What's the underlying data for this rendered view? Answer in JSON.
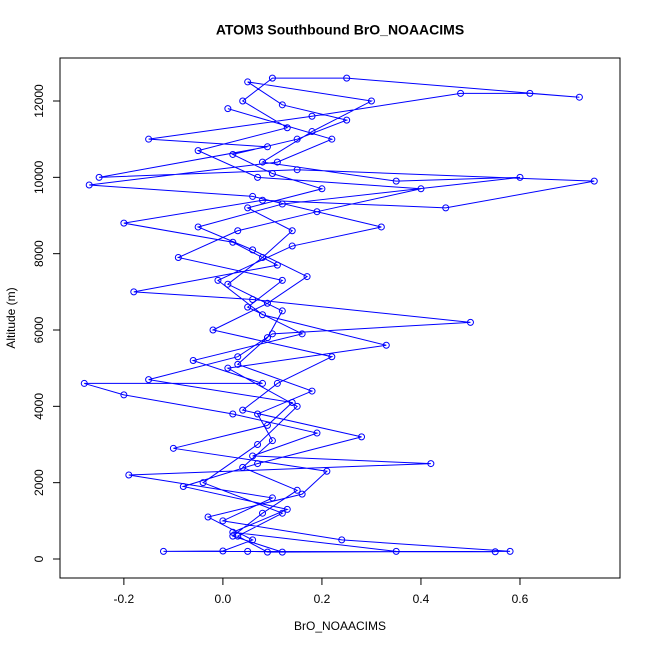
{
  "chart_data": {
    "type": "line",
    "title": "ATOM3 Southbound BrO_NOAACIMS",
    "x_label": "BrO_NOAACIMS",
    "y_label": "Altitude (m)",
    "color": "#0000ff",
    "markers": true,
    "x": [
      0.05,
      0.12,
      0.02,
      0.08,
      0.15,
      0.04,
      0.1,
      0.07,
      0.18,
      0.03,
      0.09,
      0.12,
      0.01,
      0.08,
      0.14,
      0.05,
      0.2,
      0.1,
      0.02,
      0.15,
      0.25,
      0.12,
      0.05,
      0.3,
      0.18,
      0.08,
      0.35,
      0.6,
      0.12,
      -0.05,
      0.06,
      0.17,
      0.09,
      -0.02,
      0.22,
      0.11,
      0.04,
      0.28,
      0.07,
      -0.08,
      0.13,
      0.02,
      0.35,
      0.55,
      -0.12,
      0.0,
      0.06,
      -0.03,
      0.16,
      0.21,
      -0.1,
      0.09,
      0.14,
      -0.15,
      0.03,
      0.1,
      0.5,
      0.06,
      -0.18,
      0.11,
      0.02,
      -0.2,
      0.08,
      0.45,
      0.75,
      0.15,
      -0.25,
      0.09,
      -0.15,
      0.18,
      0.48,
      0.62,
      0.72,
      0.25,
      0.1,
      0.04,
      0.13,
      -0.05,
      0.07,
      0.4,
      0.19,
      0.03,
      -0.09,
      0.12,
      0.05,
      0.16,
      -0.06,
      0.08,
      -0.28,
      -0.2,
      0.02,
      0.19,
      0.06,
      0.42,
      -0.19,
      0.1,
      0.0,
      0.24,
      0.58,
      0.09,
      0.03,
      0.12,
      -0.04,
      0.07,
      0.15,
      0.01,
      0.33,
      0.08,
      -0.01,
      0.14,
      0.32,
      0.06,
      -0.27,
      0.11,
      0.22,
      0.01
    ],
    "values": [
      200,
      180,
      600,
      1200,
      1800,
      2400,
      3100,
      3800,
      4400,
      5100,
      5800,
      6500,
      7200,
      7900,
      8600,
      9200,
      9700,
      10100,
      10600,
      11000,
      11500,
      11900,
      12500,
      12000,
      11200,
      10400,
      9900,
      10000,
      9300,
      8700,
      8100,
      7400,
      6700,
      6000,
      5300,
      4600,
      3900,
      3200,
      2500,
      1900,
      1300,
      700,
      200,
      190,
      200,
      210,
      500,
      1100,
      1700,
      2300,
      2900,
      3500,
      4100,
      4700,
      5300,
      5900,
      6200,
      6800,
      7000,
      7700,
      8300,
      8800,
      9400,
      9200,
      9900,
      10200,
      10000,
      10800,
      11000,
      11600,
      12200,
      12200,
      12100,
      12600,
      12600,
      12000,
      11300,
      10700,
      10000,
      9700,
      9100,
      8600,
      7900,
      7300,
      6600,
      5900,
      5200,
      4600,
      4600,
      4300,
      3800,
      3300,
      2700,
      2500,
      2200,
      1600,
      1000,
      500,
      200,
      180,
      600,
      1200,
      2000,
      3000,
      4000,
      5000,
      5600,
      6400,
      7300,
      8200,
      8700,
      9500,
      9800,
      10400,
      11000,
      11800
    ],
    "xlim": [
      -0.329,
      0.802
    ],
    "ylim": [
      -498,
      13127
    ],
    "xticks": [
      -0.2,
      {
        "value": 0,
        "label": "0.0"
      },
      0.2,
      0.4,
      0.6
    ],
    "yticks": [
      0,
      2000,
      4000,
      6000,
      8000,
      10000,
      12000
    ]
  }
}
